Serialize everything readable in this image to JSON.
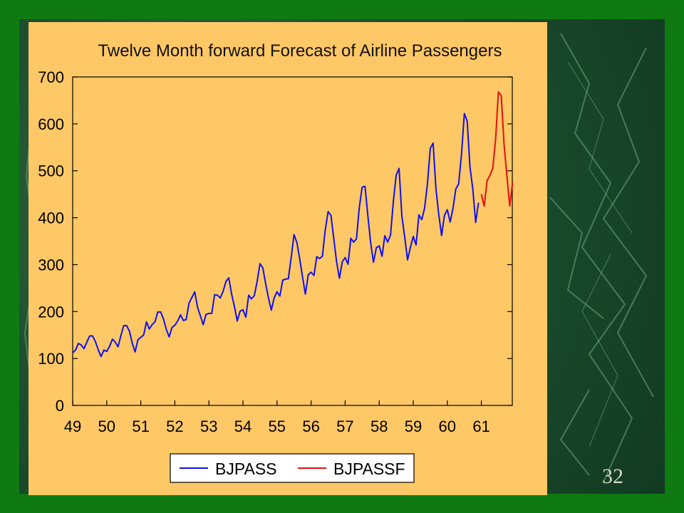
{
  "slide": {
    "page_number": "32",
    "colors": {
      "border": "#0f7a12",
      "marble_dark": "#123a22",
      "marble_light": "#6fa884",
      "panel": "#ffc866"
    }
  },
  "chart_data": {
    "type": "line",
    "title": "Twelve Month forward Forecast of Airline Passengers",
    "xlabel": "",
    "ylabel": "",
    "ylim": [
      0,
      700
    ],
    "xlim": [
      49,
      62
    ],
    "yticks": [
      0,
      100,
      200,
      300,
      400,
      500,
      600,
      700
    ],
    "xtick_labels": [
      "49",
      "50",
      "51",
      "52",
      "53",
      "54",
      "55",
      "56",
      "57",
      "58",
      "59",
      "60",
      "61"
    ],
    "grid": false,
    "legend_position": "bottom",
    "series": [
      {
        "name": "BJPASS",
        "color": "#1010ee",
        "start": 49.0,
        "step": 0.08333,
        "values": [
          112,
          118,
          132,
          129,
          121,
          135,
          148,
          148,
          136,
          119,
          104,
          118,
          115,
          126,
          141,
          135,
          125,
          149,
          170,
          170,
          158,
          133,
          114,
          140,
          145,
          150,
          178,
          163,
          172,
          178,
          199,
          199,
          184,
          162,
          146,
          166,
          171,
          180,
          193,
          181,
          183,
          218,
          230,
          242,
          209,
          191,
          172,
          194,
          196,
          196,
          236,
          235,
          229,
          243,
          264,
          272,
          237,
          211,
          180,
          201,
          204,
          188,
          235,
          227,
          234,
          264,
          302,
          293,
          259,
          229,
          203,
          229,
          242,
          233,
          267,
          269,
          270,
          315,
          364,
          347,
          312,
          274,
          237,
          278,
          284,
          277,
          317,
          313,
          318,
          374,
          413,
          405,
          355,
          306,
          271,
          306,
          315,
          301,
          356,
          348,
          355,
          422,
          465,
          467,
          404,
          347,
          305,
          336,
          340,
          318,
          362,
          348,
          363,
          435,
          491,
          505,
          404,
          359,
          310,
          337,
          360,
          342,
          406,
          396,
          420,
          472,
          548,
          559,
          463,
          407,
          362,
          405,
          417,
          391,
          419,
          461,
          472,
          535,
          622,
          606,
          508,
          461,
          390,
          432
        ]
      },
      {
        "name": "BJPASSF",
        "color": "#e01010",
        "start": 61.0,
        "step": 0.08333,
        "values": [
          450,
          425,
          479,
          490,
          505,
          565,
          668,
          660,
          555,
          490,
          425,
          475
        ]
      }
    ]
  }
}
